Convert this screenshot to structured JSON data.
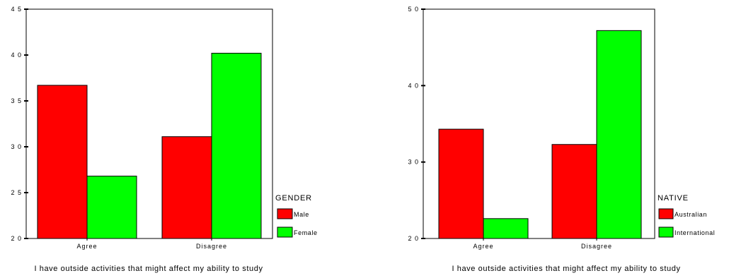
{
  "chart_data": [
    {
      "type": "bar",
      "categories": [
        "Agree",
        "Disagree"
      ],
      "series": [
        {
          "name": "Male",
          "values": [
            36.7,
            31.1
          ],
          "color": "#ff0000"
        },
        {
          "name": "Female",
          "values": [
            26.8,
            40.2
          ],
          "color": "#00ff00"
        }
      ],
      "yticks": [
        20,
        25,
        30,
        35,
        40,
        45
      ],
      "ytick_labels": [
        "2 0",
        "2 5",
        "3 0",
        "3 5",
        "4 0",
        "4 5"
      ],
      "ylim": [
        20,
        45
      ],
      "xlabel": "I have outside activities that might affect my ability to study",
      "ylabel": "",
      "legend_title": "GENDER",
      "legend_position": "right"
    },
    {
      "type": "bar",
      "categories": [
        "Agree",
        "Disagree"
      ],
      "series": [
        {
          "name": "Australian",
          "values": [
            34.3,
            32.3
          ],
          "color": "#ff0000"
        },
        {
          "name": "International",
          "values": [
            22.6,
            47.2
          ],
          "color": "#00ff00"
        }
      ],
      "yticks": [
        20,
        30,
        40,
        50
      ],
      "ytick_labels": [
        "2 0",
        "3 0",
        "4 0",
        "5 0"
      ],
      "ylim": [
        20,
        50
      ],
      "xlabel": "I have outside activities that might affect my ability to study",
      "ylabel": "",
      "legend_title": "NATIVE",
      "legend_position": "right"
    }
  ]
}
